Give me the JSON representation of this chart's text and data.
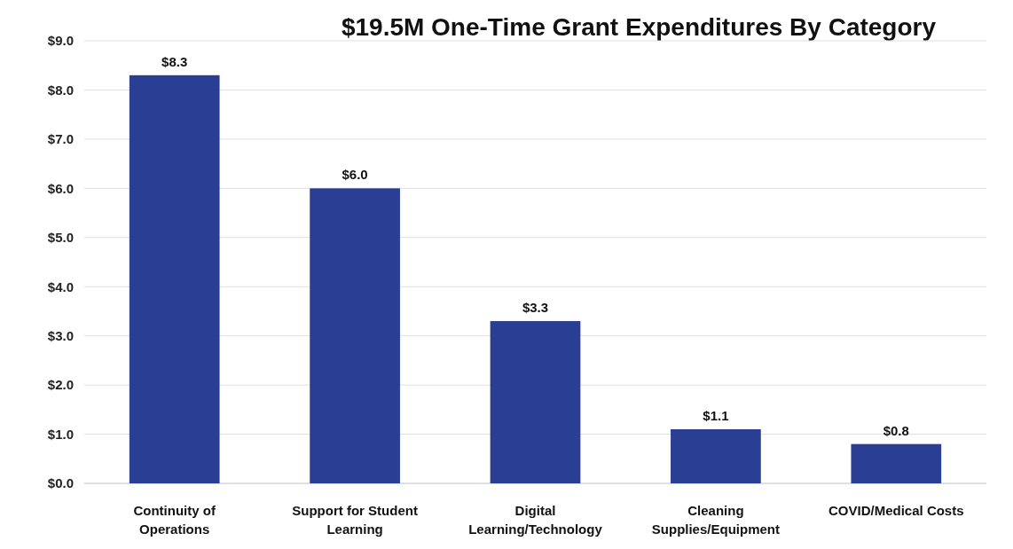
{
  "chart_data": {
    "type": "bar",
    "title": "$19.5M One-Time Grant Expenditures By Category",
    "categories": [
      "Continuity of Operations",
      "Support for Student Learning",
      "Digital Learning/Technology",
      "Cleaning Supplies/Equipment",
      "COVID/Medical Costs"
    ],
    "values": [
      8.3,
      6.0,
      3.3,
      1.1,
      0.8
    ],
    "value_labels": [
      "$8.3",
      "$6.0",
      "$3.3",
      "$1.1",
      "$0.8"
    ],
    "color": "#2a3f94",
    "ylim": [
      0,
      9
    ],
    "yticks": [
      {
        "value": 0,
        "label": "$0.0"
      },
      {
        "value": 1,
        "label": "$1.0"
      },
      {
        "value": 2,
        "label": "$2.0"
      },
      {
        "value": 3,
        "label": "$3.0"
      },
      {
        "value": 4,
        "label": "$4.0"
      },
      {
        "value": 5,
        "label": "$5.0"
      },
      {
        "value": 6,
        "label": "$6.0"
      },
      {
        "value": 7,
        "label": "$7.0"
      },
      {
        "value": 8,
        "label": "$8.0"
      },
      {
        "value": 9,
        "label": "$9.0"
      }
    ],
    "grid": "y"
  }
}
